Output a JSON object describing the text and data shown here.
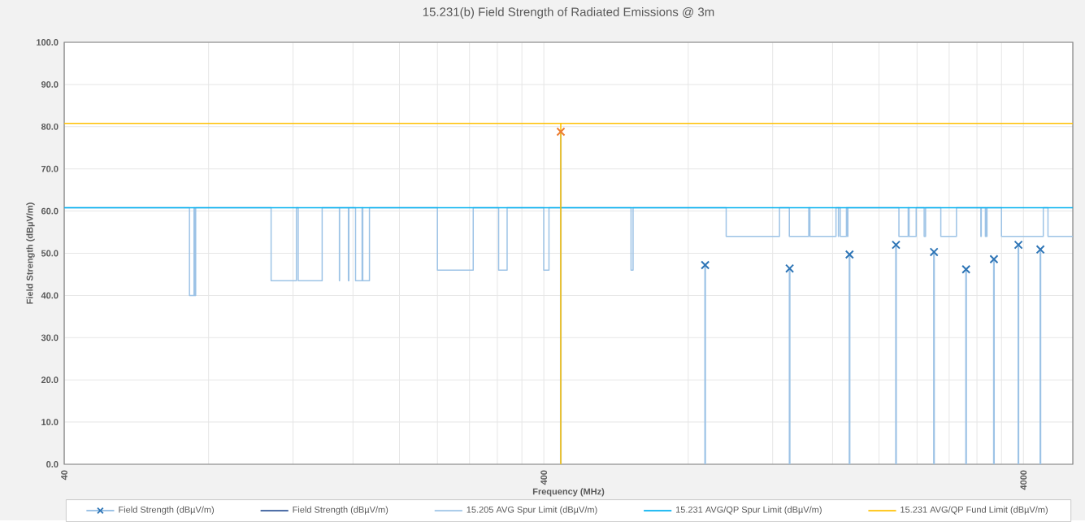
{
  "chart_data": {
    "type": "line",
    "title": "15.231(b) Field Strength of Radiated Emissions @ 3m",
    "xlabel": "Frequency (MHz)",
    "ylabel": "Field Strength (dBµV/m)",
    "log": "x",
    "grid": true,
    "legend": "bottom",
    "xlim": [
      40,
      5070
    ],
    "ylim": [
      0,
      100
    ],
    "xticks": [
      40,
      {
        "value": 80,
        "label": null
      },
      {
        "value": 120,
        "label": null
      },
      {
        "value": 160,
        "label": null
      },
      {
        "value": 200,
        "label": null
      },
      {
        "value": 240,
        "label": null
      },
      {
        "value": 280,
        "label": null
      },
      {
        "value": 320,
        "label": null
      },
      {
        "value": 360,
        "label": null
      },
      400,
      {
        "value": 800,
        "label": null
      },
      {
        "value": 1200,
        "label": null
      },
      {
        "value": 1600,
        "label": null
      },
      {
        "value": 2000,
        "label": null
      },
      {
        "value": 2400,
        "label": null
      },
      {
        "value": 2800,
        "label": null
      },
      {
        "value": 3200,
        "label": null
      },
      {
        "value": 3600,
        "label": null
      },
      4000
    ],
    "yticks": [
      {
        "value": 0,
        "label": "0.0"
      },
      {
        "value": 10,
        "label": "10.0"
      },
      {
        "value": 20,
        "label": "20.0"
      },
      {
        "value": 30,
        "label": "30.0"
      },
      {
        "value": 40,
        "label": "40.0"
      },
      {
        "value": 50,
        "label": "50.0"
      },
      {
        "value": 60,
        "label": "60.0"
      },
      {
        "value": 70,
        "label": "70.0"
      },
      {
        "value": 80,
        "label": "80.0"
      },
      {
        "value": 90,
        "label": "90.0"
      },
      {
        "value": 100,
        "label": "100.0"
      }
    ],
    "series": [
      {
        "name": "Field Strength (dBµV/m)",
        "type": "lollipop",
        "marker": "cross",
        "color": "#9dc3e6",
        "x": [
          433.92,
          867.8,
          1301.8,
          1735.7,
          2169.6,
          2603.5,
          3037.4,
          3471.4,
          3905.3,
          4339.2
        ],
        "values": [
          78.8,
          47.2,
          46.4,
          49.7,
          52.0,
          50.3,
          46.2,
          48.6,
          52.0,
          50.9
        ],
        "colors": [
          "#ed7d31",
          "#2e75b6",
          "#2e75b6",
          "#2e75b6",
          "#2e75b6",
          "#2e75b6",
          "#2e75b6",
          "#2e75b6",
          "#2e75b6",
          "#2e75b6"
        ]
      },
      {
        "name": "Field Strength (dBµV/m)",
        "color": "#2f5597"
      },
      {
        "name": "15.205 AVG Spur Limit (dBµV/m)",
        "color": "#9dc3e6",
        "x": [
          40,
          73,
          73,
          74.6,
          74.6,
          74.8,
          74.8,
          75.2,
          75.2,
          108,
          108,
          121.94,
          121.94,
          123,
          123,
          138,
          138,
          149.9,
          149.9,
          150.05,
          150.05,
          156.52475,
          156.52475,
          156.52525,
          156.52525,
          156.7,
          156.7,
          156.9,
          156.9,
          162.0125,
          162.0125,
          167.17,
          167.17,
          167.72,
          167.72,
          173.2,
          173.2,
          240,
          240,
          285,
          285,
          322,
          322,
          335.4,
          335.4,
          399.9,
          399.9,
          410,
          410,
          608,
          608,
          614,
          614,
          960,
          960,
          1240,
          1240,
          1300,
          1300,
          1427,
          1427,
          1435,
          1435,
          1626.5,
          1626.5,
          1645.5,
          1645.5,
          1646.5,
          1646.5,
          1660,
          1660,
          1710,
          1710,
          1718.8,
          1718.8,
          1722.2,
          1722.2,
          2200,
          2200,
          2300,
          2300,
          2310,
          2310,
          2390,
          2390,
          2483.5,
          2483.5,
          2500,
          2500,
          2690,
          2690,
          2900,
          2900,
          3260,
          3260,
          3267,
          3267,
          3332,
          3332,
          3339,
          3339,
          3345.8,
          3345.8,
          3358,
          3358,
          3600,
          3600,
          4400,
          4400,
          4500,
          4500,
          5070
        ],
        "values": [
          60.8,
          60.8,
          40,
          40,
          60.8,
          60.8,
          40,
          40,
          60.8,
          60.8,
          43.5,
          43.5,
          60.8,
          60.8,
          43.5,
          43.5,
          60.8,
          60.8,
          43.5,
          43.5,
          60.8,
          60.8,
          43.5,
          43.5,
          60.8,
          60.8,
          43.5,
          43.5,
          60.8,
          60.8,
          43.5,
          43.5,
          60.8,
          60.8,
          43.5,
          43.5,
          60.8,
          60.8,
          46,
          46,
          60.8,
          60.8,
          46,
          46,
          60.8,
          60.8,
          46,
          46,
          60.8,
          60.8,
          46,
          46,
          60.8,
          60.8,
          54,
          54,
          60.8,
          60.8,
          54,
          54,
          60.8,
          60.8,
          54,
          54,
          60.8,
          60.8,
          54,
          54,
          60.8,
          60.8,
          54,
          54,
          60.8,
          60.8,
          54,
          54,
          60.8,
          60.8,
          54,
          54,
          60.8,
          60.8,
          54,
          54,
          60.8,
          60.8,
          54,
          54,
          60.8,
          60.8,
          54,
          54,
          60.8,
          60.8,
          54,
          54,
          60.8,
          60.8,
          54,
          54,
          60.8,
          60.8,
          54,
          54,
          60.8,
          60.8,
          54,
          54,
          60.8,
          60.8,
          54,
          54
        ]
      },
      {
        "name": "15.231 AVG/QP Spur Limit (dBµV/m)",
        "color": "#00b0f0",
        "x": [
          40,
          5070
        ],
        "values": [
          60.8,
          60.8
        ]
      },
      {
        "name": "15.231 AVG/QP Fund Limit (dBµV/m)",
        "color": "#ffc000",
        "x": [
          40,
          433.92,
          433.92,
          433.92,
          5070
        ],
        "values": [
          80.8,
          80.8,
          0,
          80.8,
          80.8
        ]
      }
    ]
  }
}
